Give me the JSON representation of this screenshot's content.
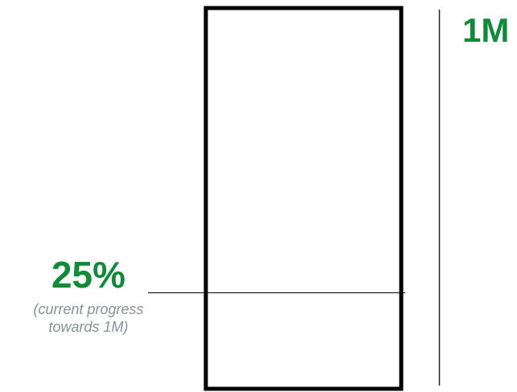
{
  "goal": {
    "label": "1M"
  },
  "progress": {
    "percent_label": "25%",
    "fraction": 0.25,
    "caption_line1": "(current progress",
    "caption_line2": "towards 1M)"
  },
  "colors": {
    "accent_green": "#138a3a",
    "caption_gray": "#8a8f99",
    "outline": "#000000",
    "axis_line": "#222222"
  }
}
